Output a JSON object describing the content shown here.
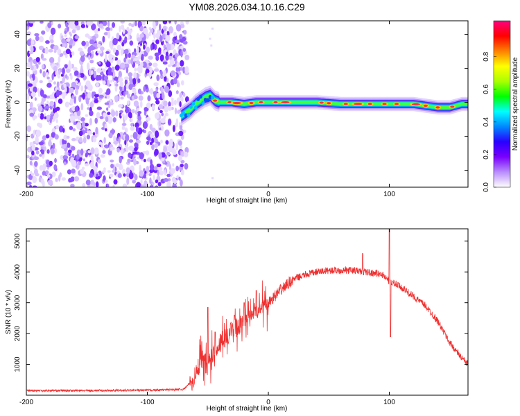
{
  "title": "YM08.2026.034.10.16.C29",
  "chart_data": [
    {
      "type": "heatmap",
      "xlabel": "Height of straight line (km)",
      "ylabel": "Frequency (Hz)",
      "xlim": [
        -200,
        165
      ],
      "ylim": [
        -50,
        48
      ],
      "xticks": [
        -200,
        -100,
        0,
        100
      ],
      "yticks": [
        -40,
        -20,
        0,
        20,
        40
      ],
      "noise_region_x": [
        -200,
        -70
      ],
      "signal_track": {
        "x": [
          -72,
          -68,
          -64,
          -60,
          -56,
          -52,
          -48,
          -44,
          -40,
          -30,
          -20,
          -10,
          0,
          20,
          40,
          60,
          80,
          100,
          120,
          140,
          150,
          160,
          165
        ],
        "freq": [
          -8,
          -6,
          -4,
          -1,
          1,
          3,
          4,
          1,
          0,
          0,
          -1,
          0,
          0,
          0,
          0,
          -1,
          -1,
          -1,
          -1,
          -3,
          -3,
          -1,
          -1
        ]
      },
      "colorbar": {
        "label": "Normalized spectral amplitude",
        "range": [
          0,
          1
        ],
        "ticks": [
          "0.0",
          "0.2",
          "0.4",
          "0.6",
          "0.8"
        ],
        "colors": [
          "#ffffff",
          "#b98cff",
          "#7a00ff",
          "#2a00ff",
          "#0088ff",
          "#00ffff",
          "#00ff00",
          "#aaff00",
          "#ffff00",
          "#ff8000",
          "#ff0000",
          "#ff0080"
        ]
      }
    },
    {
      "type": "line",
      "xlabel": "Height of straight line (km)",
      "ylabel": "SNR (10 * v/v)",
      "xlim": [
        -200,
        165
      ],
      "ylim": [
        0,
        5400
      ],
      "xticks": [
        -200,
        -100,
        0,
        100
      ],
      "yticks": [
        1000,
        2000,
        3000,
        4000,
        5000
      ],
      "color": "#ef3030",
      "envelope": {
        "x": [
          -200,
          -150,
          -100,
          -70,
          -62,
          -55,
          -50,
          -45,
          -40,
          -30,
          -20,
          -10,
          0,
          10,
          20,
          30,
          40,
          50,
          60,
          70,
          80,
          90,
          95,
          100,
          105,
          110,
          120,
          130,
          140,
          150,
          160,
          165
        ],
        "y": [
          150,
          150,
          160,
          190,
          500,
          1200,
          900,
          1400,
          1700,
          2100,
          2400,
          2700,
          3000,
          3400,
          3750,
          3900,
          4000,
          4050,
          4050,
          4050,
          4000,
          3950,
          3900,
          3700,
          3600,
          3500,
          3200,
          2900,
          2400,
          1700,
          1200,
          1000
        ]
      },
      "spikes": [
        {
          "x": -50,
          "y": 2850
        },
        {
          "x": -44,
          "y": 2050
        },
        {
          "x": -28,
          "y": 2600
        },
        {
          "x": -20,
          "y": 3000
        },
        {
          "x": -10,
          "y": 3400
        },
        {
          "x": 78,
          "y": 4600
        },
        {
          "x": 100,
          "y": 5400
        },
        {
          "x": 101,
          "y": 1900
        }
      ]
    }
  ]
}
